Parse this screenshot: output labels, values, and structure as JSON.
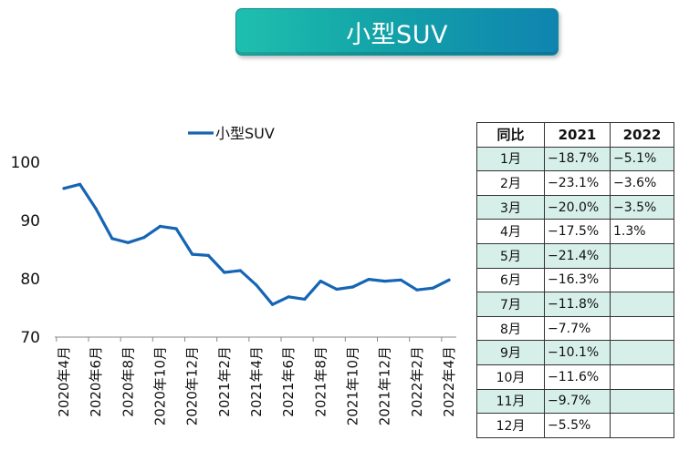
{
  "title": "小型SUV",
  "chart_data": {
    "type": "line",
    "legend_position": "top-center",
    "ylim": [
      70,
      100
    ],
    "yticks": [
      70,
      80,
      90,
      100
    ],
    "x": [
      "2020年4月",
      "2020年5月",
      "2020年6月",
      "2020年7月",
      "2020年8月",
      "2020年9月",
      "2020年10月",
      "2020年11月",
      "2020年12月",
      "2021年1月",
      "2021年2月",
      "2021年3月",
      "2021年4月",
      "2021年5月",
      "2021年6月",
      "2021年7月",
      "2021年8月",
      "2021年9月",
      "2021年10月",
      "2021年11月",
      "2021年12月",
      "2022年1月",
      "2022年2月",
      "2022年3月",
      "2022年4月"
    ],
    "xtick_labels": [
      "2020年4月",
      "2020年6月",
      "2020年8月",
      "2020年10月",
      "2020年12月",
      "2021年2月",
      "2021年4月",
      "2021年6月",
      "2021年8月",
      "2021年10月",
      "2021年12月",
      "2022年2月",
      "2022年4月"
    ],
    "series": [
      {
        "name": "小型SUV",
        "color": "#1565b4",
        "values": [
          95.5,
          96.2,
          92.0,
          86.9,
          86.2,
          87.1,
          89.0,
          88.6,
          84.2,
          84.0,
          81.1,
          81.4,
          78.9,
          75.6,
          76.9,
          76.5,
          79.6,
          78.2,
          78.6,
          79.9,
          79.6,
          79.8,
          78.1,
          78.4,
          79.8
        ]
      }
    ]
  },
  "table": {
    "headers": [
      "同比",
      "2021",
      "2022"
    ],
    "rows": [
      {
        "month": "1月",
        "y2021": "−18.7%",
        "y2022": "−5.1%"
      },
      {
        "month": "2月",
        "y2021": "−23.1%",
        "y2022": "−3.6%"
      },
      {
        "month": "3月",
        "y2021": "−20.0%",
        "y2022": "−3.5%"
      },
      {
        "month": "4月",
        "y2021": "−17.5%",
        "y2022": "1.3%"
      },
      {
        "month": "5月",
        "y2021": "−21.4%",
        "y2022": ""
      },
      {
        "month": "6月",
        "y2021": "−16.3%",
        "y2022": ""
      },
      {
        "month": "7月",
        "y2021": "−11.8%",
        "y2022": ""
      },
      {
        "month": "8月",
        "y2021": "−7.7%",
        "y2022": ""
      },
      {
        "month": "9月",
        "y2021": "−10.1%",
        "y2022": ""
      },
      {
        "month": "10月",
        "y2021": "−11.6%",
        "y2022": ""
      },
      {
        "month": "11月",
        "y2021": "−9.7%",
        "y2022": ""
      },
      {
        "month": "12月",
        "y2021": "−5.5%",
        "y2022": ""
      }
    ],
    "shade_color": "#d6efe9"
  }
}
